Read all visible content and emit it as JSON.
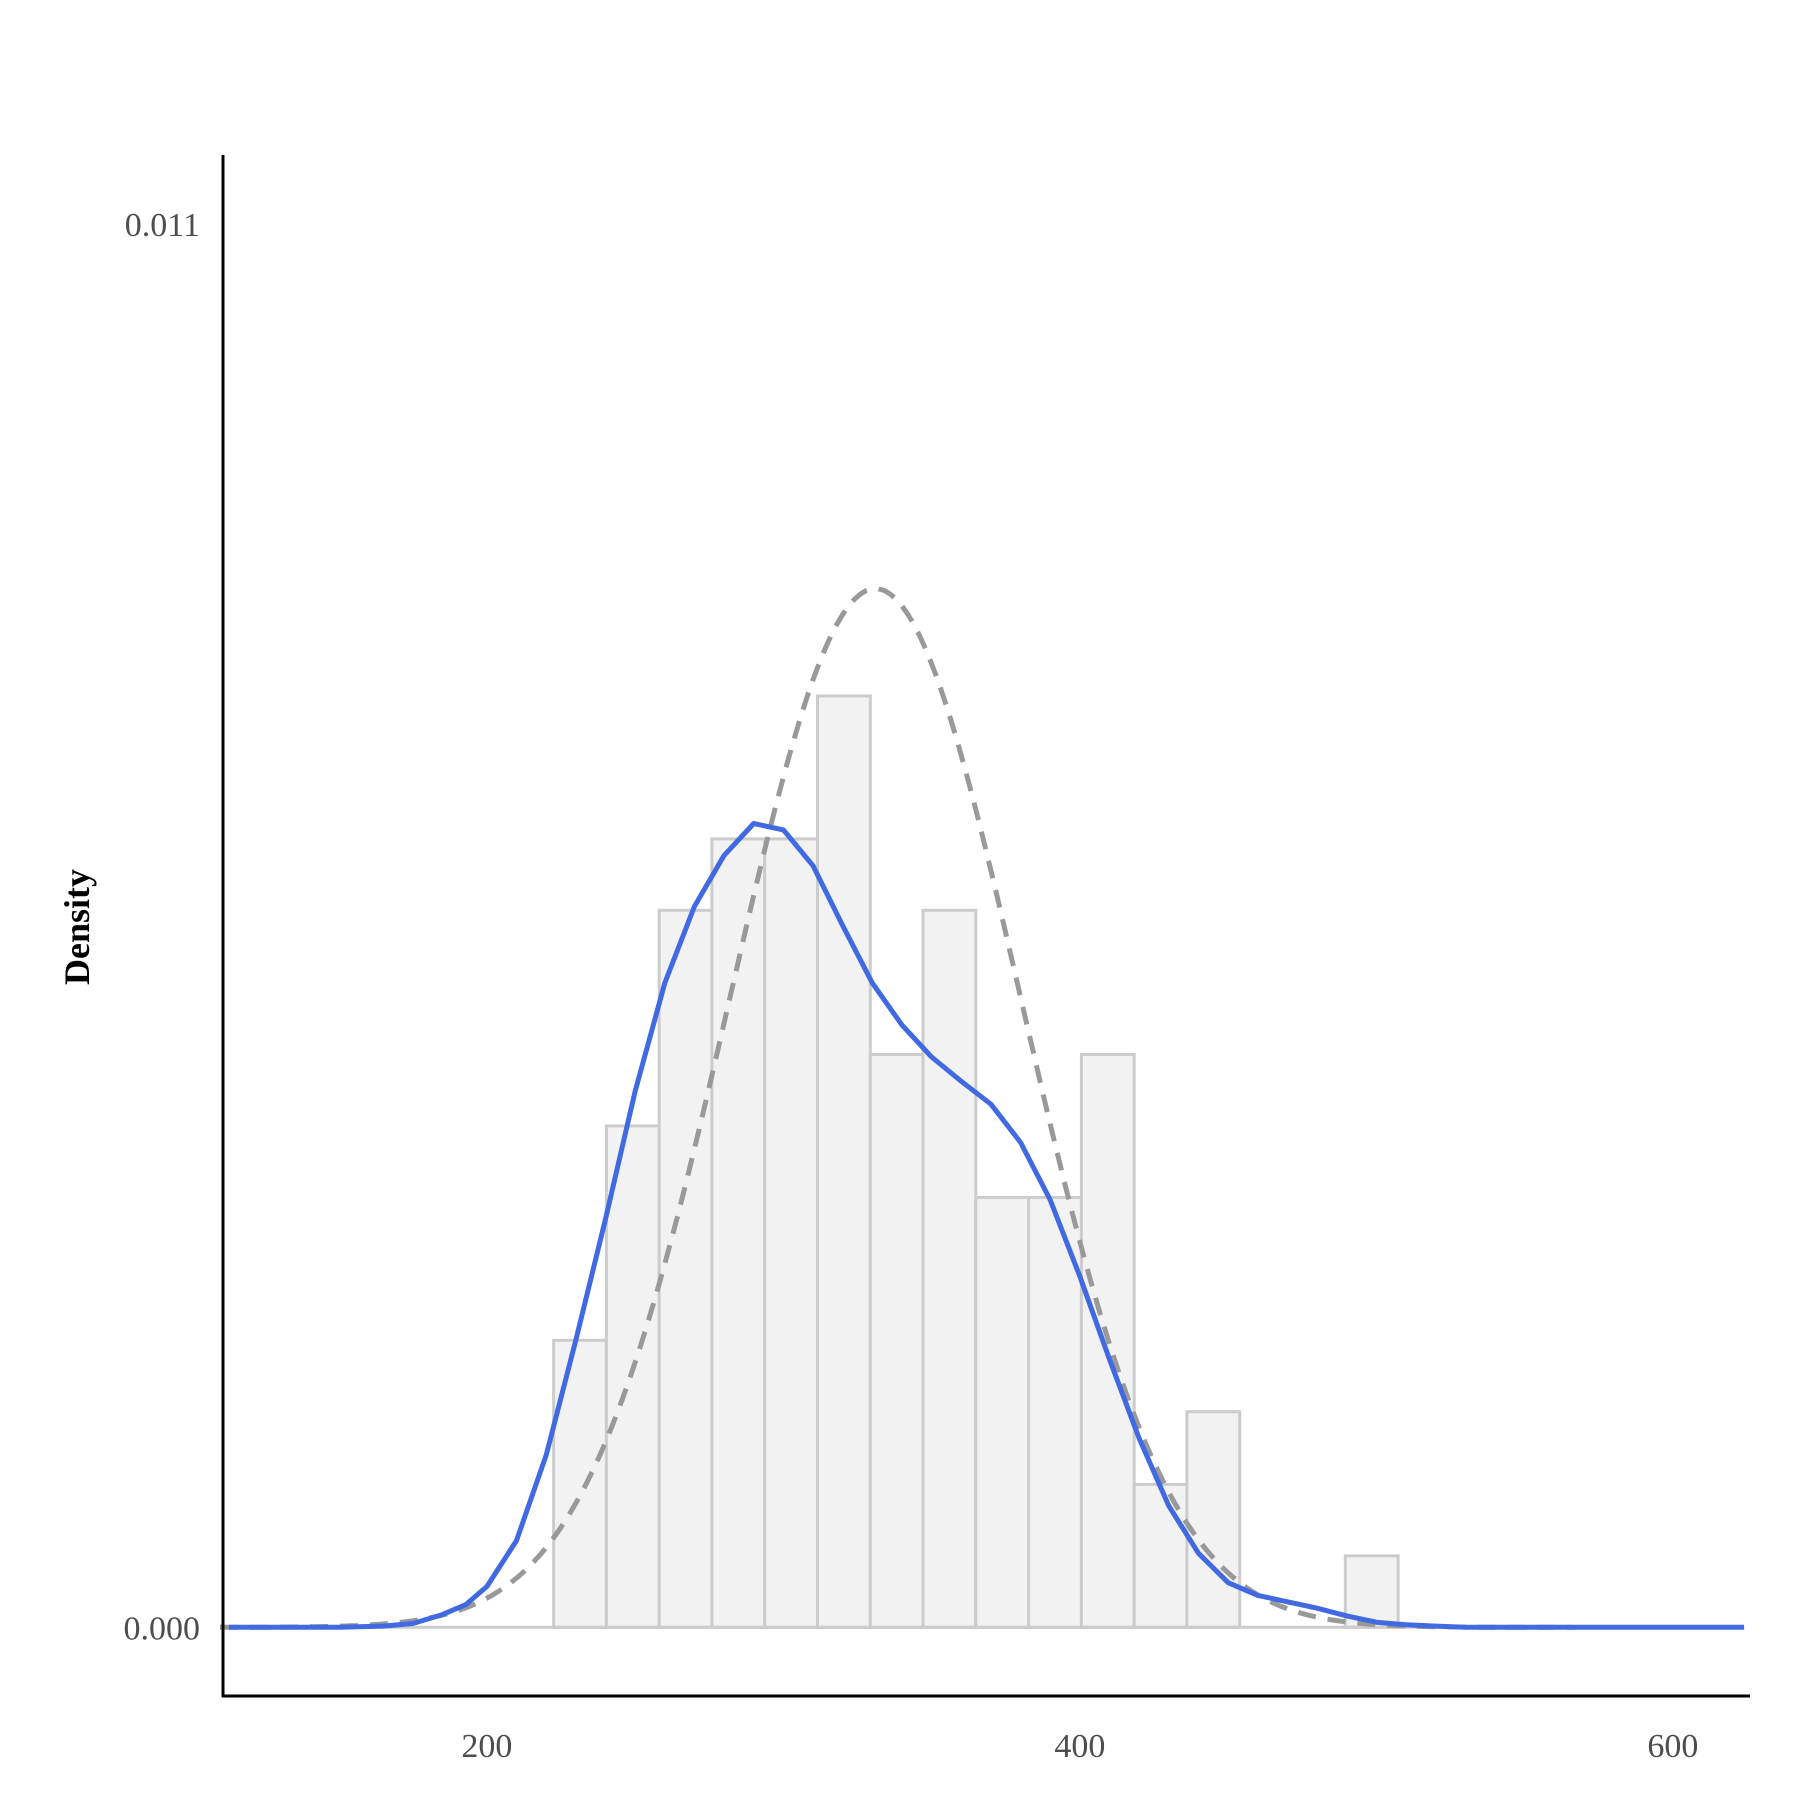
{
  "chart_data": {
    "type": "bar",
    "subtype": "histogram-with-density",
    "title": "",
    "xlabel": "",
    "ylabel": "Density",
    "xlim": [
      111,
      626
    ],
    "ylim": [
      -0.000546,
      0.01154
    ],
    "x_ticks": [
      200,
      400,
      600
    ],
    "y_ticks": [
      0.0,
      0.011
    ],
    "x_tick_labels": [
      "200",
      "400",
      "600"
    ],
    "y_tick_labels": [
      "0.000",
      "0.011"
    ],
    "grid": false,
    "legend": "none",
    "histogram": {
      "bin_width": 17.8,
      "bins": [
        {
          "x0": 222.5,
          "x1": 240.3,
          "density": 0.00225
        },
        {
          "x0": 240.3,
          "x1": 258.1,
          "density": 0.00393
        },
        {
          "x0": 258.1,
          "x1": 275.9,
          "density": 0.00562
        },
        {
          "x0": 275.9,
          "x1": 293.7,
          "density": 0.00618
        },
        {
          "x0": 293.7,
          "x1": 311.5,
          "density": 0.00618
        },
        {
          "x0": 311.5,
          "x1": 329.3,
          "density": 0.0073
        },
        {
          "x0": 329.3,
          "x1": 347.1,
          "density": 0.00449
        },
        {
          "x0": 347.1,
          "x1": 364.9,
          "density": 0.00562
        },
        {
          "x0": 364.9,
          "x1": 382.7,
          "density": 0.00337
        },
        {
          "x0": 382.7,
          "x1": 400.5,
          "density": 0.00337
        },
        {
          "x0": 400.5,
          "x1": 418.3,
          "density": 0.00449
        },
        {
          "x0": 418.3,
          "x1": 436.1,
          "density": 0.00112
        },
        {
          "x0": 436.1,
          "x1": 453.9,
          "density": 0.00169
        },
        {
          "x0": 453.9,
          "x1": 471.7,
          "density": 0
        },
        {
          "x0": 471.7,
          "x1": 489.5,
          "density": 0
        },
        {
          "x0": 489.5,
          "x1": 507.3,
          "density": 0.00056
        }
      ],
      "fill": "#f2f2f2",
      "stroke": "#cccccc"
    },
    "series": [
      {
        "kind": "kernel-density",
        "color": "#4169e1",
        "points": [
          [
            113,
            0
          ],
          [
            150,
            1e-06
          ],
          [
            165,
            1e-05
          ],
          [
            175,
            3e-05
          ],
          [
            185,
            0.0001
          ],
          [
            193,
            0.00018
          ],
          [
            200,
            0.00032
          ],
          [
            210,
            0.00068
          ],
          [
            220,
            0.00135
          ],
          [
            230,
            0.00225
          ],
          [
            240,
            0.0032
          ],
          [
            250,
            0.0042
          ],
          [
            260,
            0.00505
          ],
          [
            270,
            0.00565
          ],
          [
            280,
            0.00605
          ],
          [
            290,
            0.0063
          ],
          [
            300,
            0.00625
          ],
          [
            310,
            0.00597
          ],
          [
            320,
            0.0055
          ],
          [
            330,
            0.00505
          ],
          [
            340,
            0.00472
          ],
          [
            350,
            0.00447
          ],
          [
            360,
            0.00428
          ],
          [
            370,
            0.0041
          ],
          [
            380,
            0.0038
          ],
          [
            390,
            0.00335
          ],
          [
            400,
            0.00275
          ],
          [
            410,
            0.0021
          ],
          [
            420,
            0.00148
          ],
          [
            430,
            0.00095
          ],
          [
            440,
            0.00058
          ],
          [
            450,
            0.00035
          ],
          [
            460,
            0.00025
          ],
          [
            470,
            0.0002
          ],
          [
            480,
            0.00015
          ],
          [
            490,
            9e-05
          ],
          [
            500,
            4e-05
          ],
          [
            510,
            2e-05
          ],
          [
            520,
            1e-05
          ],
          [
            530,
            0
          ],
          [
            624,
            0
          ]
        ]
      },
      {
        "kind": "normal-density",
        "color": "#999999",
        "mean": 331,
        "sd": 49,
        "x_range": [
          110,
          566
        ]
      }
    ]
  }
}
